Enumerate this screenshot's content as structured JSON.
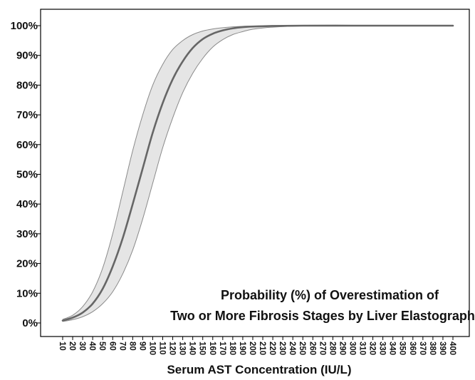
{
  "chart_data": {
    "type": "line",
    "title": "",
    "xlabel": "Serum AST Concentration (IU/L)",
    "ylabel": "",
    "annotation": [
      "Probability (%) of Overestimation of",
      "Two or More Fibrosis Stages by Liver Elastography"
    ],
    "xlim": [
      10,
      400
    ],
    "ylim": [
      0,
      100
    ],
    "x_ticks": [
      10,
      20,
      30,
      40,
      50,
      60,
      70,
      80,
      90,
      100,
      110,
      120,
      130,
      140,
      150,
      160,
      170,
      180,
      190,
      200,
      210,
      220,
      230,
      240,
      250,
      260,
      270,
      280,
      290,
      300,
      310,
      320,
      330,
      340,
      350,
      360,
      370,
      380,
      390,
      400
    ],
    "y_ticks": [
      "0%",
      "10%",
      "20%",
      "30%",
      "40%",
      "50%",
      "60%",
      "70%",
      "80%",
      "90%",
      "100%"
    ],
    "grid": false,
    "colors": {
      "line": "#666666",
      "band_fill": "#e5e5e5",
      "band_edge": "#8a8a8a",
      "axis": "#000000"
    },
    "series": [
      {
        "role": "estimate",
        "x": [
          10,
          20,
          30,
          40,
          50,
          60,
          70,
          80,
          90,
          100,
          110,
          120,
          130,
          140,
          150,
          160,
          170,
          180,
          190,
          200,
          220,
          250,
          300,
          350,
          400
        ],
        "y": [
          0.8,
          1.8,
          3.5,
          6.5,
          11.5,
          19,
          28.5,
          40,
          52,
          64,
          74,
          82,
          88,
          92.5,
          95.5,
          97.3,
          98.4,
          99.1,
          99.5,
          99.7,
          99.9,
          100,
          100,
          100,
          100
        ]
      },
      {
        "role": "upper_ci",
        "x": [
          10,
          20,
          30,
          40,
          50,
          60,
          70,
          80,
          90,
          100,
          110,
          120,
          130,
          140,
          150,
          160,
          170,
          180,
          190,
          200,
          220,
          250,
          300,
          350,
          400
        ],
        "y": [
          1.2,
          2.6,
          5.5,
          10.5,
          18.5,
          30,
          44,
          58,
          70,
          80,
          87,
          92,
          95,
          97,
          98.2,
          98.9,
          99.3,
          99.6,
          99.8,
          99.9,
          100,
          100,
          100,
          100,
          100
        ]
      },
      {
        "role": "lower_ci",
        "x": [
          10,
          20,
          30,
          40,
          50,
          60,
          70,
          80,
          90,
          100,
          110,
          120,
          130,
          140,
          150,
          160,
          170,
          180,
          190,
          200,
          220,
          250,
          300,
          350,
          400
        ],
        "y": [
          0.5,
          1.1,
          2.1,
          3.8,
          6.5,
          10.5,
          16.5,
          24.5,
          35,
          47,
          59,
          69,
          77.5,
          84,
          89,
          92.8,
          95.3,
          97,
          98,
          98.8,
          99.5,
          99.9,
          100,
          100,
          100
        ]
      }
    ]
  }
}
